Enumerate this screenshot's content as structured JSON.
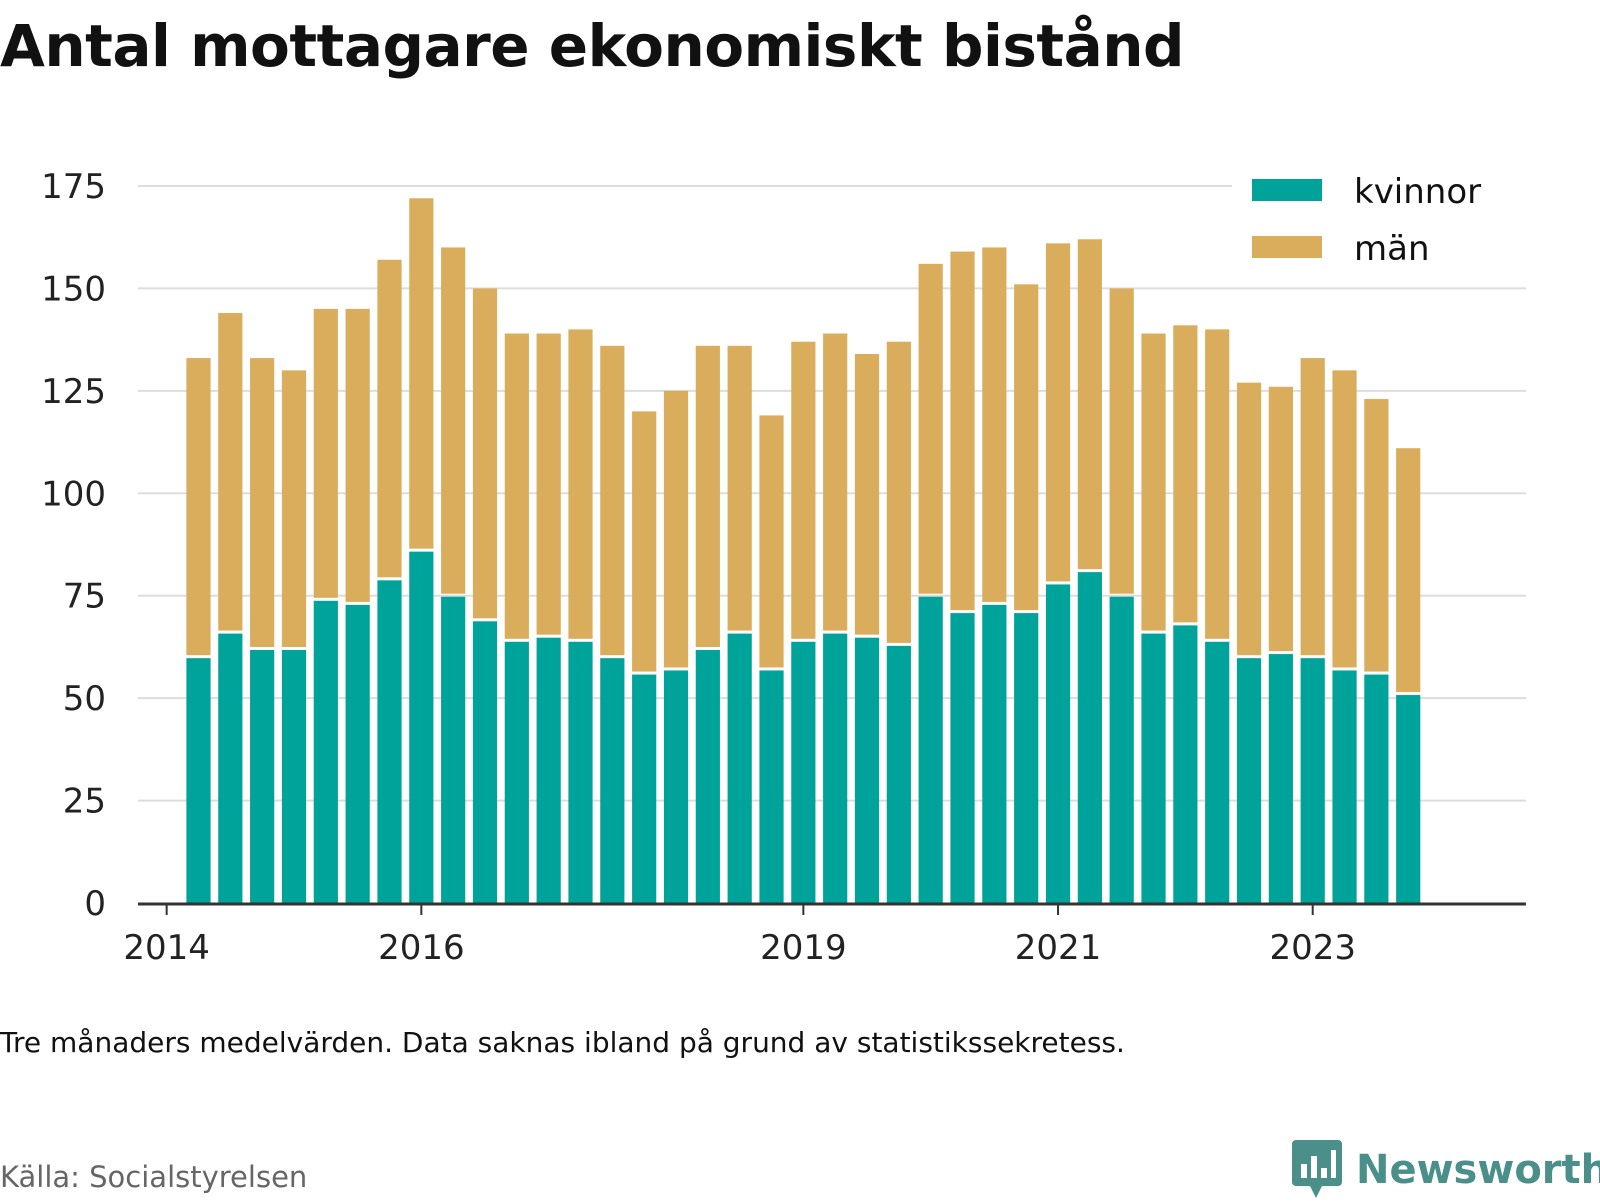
{
  "title": "Antal mottagare ekonomiskt bistånd",
  "note": "Tre månaders medelvärden. Data saknas ibland på grund av statistikssekretess.",
  "source": "Källa: Socialstyrelsen",
  "brand": {
    "name": "Newsworthy",
    "icon": "newsworthy-chart-bubble-icon"
  },
  "colors": {
    "kvinnor": "#00a39a",
    "man": "#d9ad5c",
    "grid": "#dddddd",
    "axis": "#333333"
  },
  "chart_data": {
    "type": "bar",
    "stacked": true,
    "x_ticks": [
      {
        "label": "2014",
        "index": -1
      },
      {
        "label": "2016",
        "index": 7
      },
      {
        "label": "2019",
        "index": 19
      },
      {
        "label": "2021",
        "index": 27
      },
      {
        "label": "2023",
        "index": 35
      }
    ],
    "x_range": [
      -1.9,
      41.7
    ],
    "ylim": [
      0,
      175
    ],
    "y_ticks": [
      0,
      25,
      50,
      75,
      100,
      125,
      150,
      175
    ],
    "grid": true,
    "legend_position": "top-right",
    "series": [
      {
        "name": "kvinnor",
        "values": [
          60,
          66,
          62,
          62,
          74,
          73,
          79,
          86,
          75,
          69,
          64,
          65,
          64,
          60,
          56,
          57,
          62,
          66,
          57,
          64,
          66,
          65,
          63,
          75,
          71,
          73,
          71,
          78,
          81,
          75,
          66,
          68,
          64,
          60,
          61,
          60,
          57,
          56,
          51
        ]
      },
      {
        "name": "män",
        "values": [
          73,
          78,
          71,
          68,
          71,
          72,
          78,
          86,
          85,
          81,
          75,
          74,
          76,
          76,
          64,
          68,
          74,
          70,
          62,
          73,
          73,
          69,
          74,
          81,
          88,
          87,
          80,
          83,
          81,
          75,
          73,
          73,
          76,
          67,
          65,
          73,
          73,
          67,
          60
        ]
      }
    ]
  }
}
